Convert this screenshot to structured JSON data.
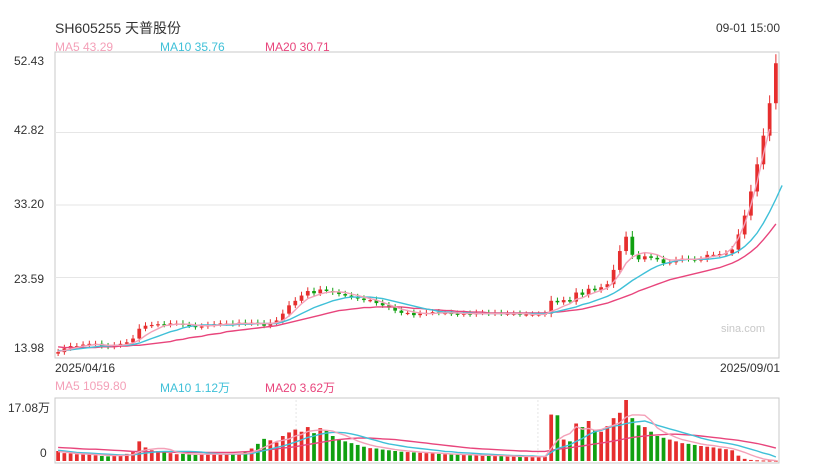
{
  "header": {
    "title": "SH605255 天普股份",
    "datetime": "09-01 15:00"
  },
  "colors": {
    "up": "#e62e2e",
    "down": "#10a010",
    "ma5": "#f4a0b8",
    "ma10": "#3fc0d8",
    "ma20": "#e8457c",
    "grid": "#e6e6e6",
    "frame": "#c8c8c8"
  },
  "price_legend": {
    "ma5": "MA5 43.29",
    "ma10": "MA10 35.76",
    "ma20": "MA20 30.71"
  },
  "volume_legend": {
    "ma5": "MA5 1059.80",
    "ma10": "MA10 1.12万",
    "ma20": "MA20 3.62万"
  },
  "price_axis": {
    "ticks": [
      "52.43",
      "42.82",
      "33.20",
      "23.59",
      "13.98"
    ]
  },
  "volume_axis": {
    "ticks": [
      "17.08万",
      "0"
    ]
  },
  "x_axis": {
    "start": "2025/04/16",
    "end": "2025/09/01"
  },
  "watermark": "sina.com",
  "chart_data": [
    {
      "type": "candlestick",
      "title": "SH605255 天普股份",
      "x_start": "2025/04/16",
      "x_end": "2025/09/01",
      "ylim": [
        13.98,
        52.43
      ],
      "closes": [
        13.7,
        14.2,
        14.5,
        14.5,
        14.7,
        14.8,
        14.8,
        14.5,
        14.4,
        14.6,
        14.8,
        15.0,
        15.5,
        16.8,
        17.2,
        17.3,
        17.4,
        17.3,
        17.5,
        17.5,
        17.3,
        17.2,
        17.0,
        17.1,
        17.3,
        17.4,
        17.5,
        17.5,
        17.4,
        17.6,
        17.5,
        17.6,
        17.5,
        17.2,
        17.6,
        17.9,
        18.8,
        19.9,
        20.5,
        21.2,
        21.8,
        21.5,
        22.0,
        21.8,
        21.6,
        21.4,
        21.2,
        21.0,
        20.8,
        20.6,
        20.6,
        20.2,
        19.9,
        19.6,
        19.2,
        18.9,
        18.9,
        18.6,
        18.8,
        18.9,
        19.0,
        18.9,
        18.9,
        18.8,
        18.7,
        18.8,
        18.7,
        18.9,
        18.9,
        18.8,
        18.9,
        18.8,
        18.8,
        18.8,
        18.7,
        18.7,
        18.7,
        18.7,
        18.8,
        20.5,
        20.3,
        20.6,
        20.4,
        21.6,
        21.3,
        22.1,
        21.9,
        22.3,
        22.7,
        24.6,
        27.1,
        29.0,
        26.6,
        26.0,
        26.4,
        26.2,
        26.0,
        25.5,
        25.6,
        25.9,
        26.1,
        26.0,
        25.9,
        26.0,
        26.6,
        26.6,
        26.7,
        26.8,
        27.3,
        29.3,
        31.8,
        35.0,
        38.6,
        42.4,
        46.7,
        52.0
      ],
      "ma5": [
        13.8,
        13.9,
        14.1,
        14.3,
        14.5,
        14.6,
        14.7,
        14.7,
        14.6,
        14.6,
        14.6,
        14.7,
        14.9,
        15.3,
        15.9,
        16.4,
        16.8,
        17.2,
        17.3,
        17.4,
        17.4,
        17.4,
        17.3,
        17.2,
        17.2,
        17.2,
        17.3,
        17.4,
        17.4,
        17.5,
        17.5,
        17.5,
        17.5,
        17.5,
        17.5,
        17.6,
        17.9,
        18.5,
        19.3,
        20.1,
        20.8,
        21.1,
        21.4,
        21.6,
        21.7,
        21.7,
        21.6,
        21.4,
        21.2,
        21.0,
        20.8,
        20.6,
        20.3,
        20.0,
        19.7,
        19.4,
        19.2,
        19.0,
        18.9,
        18.8,
        18.8,
        18.9,
        18.9,
        18.9,
        18.9,
        18.8,
        18.8,
        18.8,
        18.8,
        18.8,
        18.8,
        18.8,
        18.8,
        18.8,
        18.8,
        18.8,
        18.7,
        18.7,
        18.7,
        19.1,
        19.4,
        19.8,
        20.1,
        20.7,
        20.9,
        21.3,
        21.6,
        21.9,
        22.2,
        23.0,
        24.1,
        25.5,
        26.3,
        26.7,
        26.9,
        26.8,
        26.6,
        26.2,
        25.9,
        25.9,
        26.0,
        26.0,
        26.0,
        26.1,
        26.2,
        26.4,
        26.5,
        26.8,
        27.5,
        28.8,
        30.7,
        33.2,
        36.3,
        39.9,
        43.3
      ],
      "ma10": [
        13.9,
        13.9,
        14.0,
        14.1,
        14.2,
        14.3,
        14.4,
        14.5,
        14.5,
        14.6,
        14.6,
        14.6,
        14.7,
        14.9,
        15.2,
        15.5,
        15.8,
        16.1,
        16.4,
        16.6,
        16.9,
        17.1,
        17.2,
        17.3,
        17.3,
        17.3,
        17.3,
        17.3,
        17.3,
        17.4,
        17.4,
        17.4,
        17.5,
        17.5,
        17.5,
        17.5,
        17.7,
        18.0,
        18.4,
        18.8,
        19.2,
        19.6,
        19.9,
        20.2,
        20.5,
        20.7,
        20.9,
        21.0,
        21.0,
        21.0,
        21.0,
        20.9,
        20.8,
        20.6,
        20.4,
        20.2,
        20.0,
        19.8,
        19.6,
        19.4,
        19.3,
        19.1,
        19.0,
        19.0,
        18.9,
        18.9,
        18.9,
        18.8,
        18.8,
        18.8,
        18.8,
        18.8,
        18.8,
        18.8,
        18.8,
        18.8,
        18.8,
        18.8,
        18.8,
        18.9,
        19.1,
        19.3,
        19.5,
        19.7,
        20.0,
        20.2,
        20.5,
        20.8,
        21.1,
        21.5,
        22.0,
        22.6,
        23.2,
        23.7,
        24.2,
        24.7,
        25.1,
        25.4,
        25.6,
        25.8,
        25.9,
        26.0,
        26.0,
        26.0,
        26.0,
        26.1,
        26.2,
        26.4,
        26.7,
        27.1,
        27.7,
        28.5,
        29.5,
        30.8,
        32.3,
        34.0,
        35.8
      ],
      "ma20": [
        14.4,
        14.3,
        14.3,
        14.3,
        14.3,
        14.3,
        14.3,
        14.4,
        14.4,
        14.4,
        14.5,
        14.5,
        14.6,
        14.6,
        14.7,
        14.8,
        14.9,
        15.0,
        15.1,
        15.3,
        15.4,
        15.6,
        15.7,
        15.8,
        16.0,
        16.1,
        16.2,
        16.4,
        16.5,
        16.6,
        16.7,
        16.8,
        16.9,
        17.0,
        17.1,
        17.2,
        17.4,
        17.6,
        17.8,
        18.0,
        18.2,
        18.4,
        18.6,
        18.8,
        19.0,
        19.2,
        19.3,
        19.4,
        19.5,
        19.6,
        19.6,
        19.7,
        19.7,
        19.7,
        19.7,
        19.7,
        19.6,
        19.5,
        19.5,
        19.4,
        19.3,
        19.3,
        19.2,
        19.2,
        19.1,
        19.1,
        19.0,
        19.0,
        19.0,
        18.9,
        18.9,
        18.9,
        18.9,
        18.9,
        18.9,
        18.9,
        18.9,
        18.9,
        18.9,
        19.0,
        19.0,
        19.1,
        19.2,
        19.3,
        19.4,
        19.6,
        19.8,
        20.0,
        20.2,
        20.5,
        20.8,
        21.1,
        21.4,
        21.8,
        22.1,
        22.4,
        22.7,
        23.0,
        23.3,
        23.5,
        23.7,
        23.9,
        24.1,
        24.3,
        24.5,
        24.7,
        24.9,
        25.2,
        25.5,
        25.9,
        26.4,
        27.0,
        27.7,
        28.6,
        29.6,
        30.7
      ]
    },
    {
      "type": "bar",
      "title": "Volume",
      "ylim": [
        0,
        170800
      ],
      "volume_unit": "shares",
      "volumes": [
        28000,
        22000,
        21000,
        19000,
        18000,
        19000,
        16000,
        14000,
        13000,
        15000,
        17000,
        20000,
        25000,
        55000,
        38000,
        30000,
        28000,
        24000,
        22000,
        19000,
        20000,
        18000,
        17000,
        21000,
        19000,
        22000,
        18000,
        19000,
        21000,
        19000,
        26000,
        35000,
        48000,
        62000,
        58000,
        52000,
        70000,
        80000,
        88000,
        82000,
        95000,
        78000,
        92000,
        85000,
        70000,
        60000,
        55000,
        50000,
        45000,
        40000,
        36000,
        35000,
        32000,
        30000,
        28000,
        26000,
        25000,
        24000,
        23000,
        22000,
        21000,
        20000,
        19000,
        18000,
        18000,
        17000,
        16000,
        16000,
        15000,
        15000,
        14000,
        14000,
        13000,
        13000,
        12000,
        12000,
        11000,
        11000,
        12000,
        130000,
        128000,
        60000,
        55000,
        105000,
        95000,
        112000,
        88000,
        82000,
        98000,
        120000,
        135000,
        170800,
        120000,
        100000,
        95000,
        82000,
        70000,
        65000,
        60000,
        55000,
        50000,
        48000,
        45000,
        42000,
        40000,
        38000,
        35000,
        33000,
        30000,
        15000,
        6000,
        3000,
        2000,
        1500,
        1200,
        1000
      ],
      "ma5": [
        26000,
        25000,
        23000,
        21000,
        20000,
        19000,
        18000,
        17000,
        16000,
        15000,
        15000,
        16000,
        18000,
        26000,
        31000,
        33000,
        35000,
        35000,
        32000,
        25000,
        22000,
        20000,
        19000,
        19000,
        19000,
        19000,
        19000,
        20000,
        20000,
        20000,
        21000,
        24000,
        30000,
        38000,
        46000,
        55000,
        58000,
        62000,
        70000,
        74000,
        83000,
        85000,
        87000,
        86000,
        84000,
        77000,
        72000,
        64000,
        56000,
        50000,
        45000,
        41000,
        38000,
        35000,
        32000,
        30000,
        28000,
        27000,
        25000,
        24000,
        23000,
        22000,
        21000,
        20000,
        19000,
        18000,
        18000,
        17000,
        16000,
        16000,
        15000,
        15000,
        14000,
        14000,
        13000,
        13000,
        12000,
        12000,
        12000,
        35000,
        58000,
        70000,
        77000,
        96000,
        89000,
        91000,
        86000,
        88000,
        95000,
        100000,
        107000,
        123000,
        129000,
        129000,
        128000,
        113000,
        93000,
        82000,
        74000,
        66000,
        60000,
        56000,
        52000,
        48000,
        45000,
        43000,
        40000,
        38000,
        35000,
        30000,
        24000,
        17000,
        11000,
        6000,
        2700,
        1060
      ],
      "ma10": [
        30000,
        28000,
        26000,
        24000,
        23000,
        22000,
        21000,
        20000,
        19000,
        18000,
        17000,
        17000,
        17000,
        20000,
        22000,
        24000,
        26000,
        27000,
        27000,
        27000,
        27000,
        27000,
        26000,
        25000,
        22000,
        21000,
        20000,
        19000,
        19000,
        19000,
        20000,
        21000,
        25000,
        29000,
        33000,
        38000,
        42000,
        47000,
        53000,
        59000,
        66000,
        70000,
        75000,
        78000,
        80000,
        80000,
        79000,
        76000,
        72000,
        67000,
        62000,
        57000,
        52000,
        48000,
        45000,
        42000,
        39000,
        37000,
        35000,
        33000,
        31000,
        29000,
        27000,
        26000,
        24000,
        23000,
        22000,
        21000,
        20000,
        19000,
        18000,
        17000,
        16000,
        15000,
        15000,
        14000,
        14000,
        13000,
        13000,
        24000,
        35000,
        40000,
        45000,
        55000,
        63000,
        74000,
        82000,
        86000,
        92000,
        98000,
        100000,
        105000,
        108000,
        110000,
        112000,
        106000,
        100000,
        95000,
        90000,
        85000,
        80000,
        75000,
        70000,
        64000,
        60000,
        56000,
        53000,
        50000,
        47000,
        43000,
        38000,
        33000,
        28000,
        22000,
        18000,
        11200
      ],
      "ma20": [
        38000,
        37000,
        36000,
        35000,
        34000,
        33000,
        33000,
        32000,
        31000,
        30000,
        29000,
        28000,
        27000,
        27000,
        26000,
        26000,
        25000,
        25000,
        25000,
        24000,
        24000,
        24000,
        24000,
        24000,
        24000,
        24000,
        24000,
        24000,
        24000,
        25000,
        26000,
        27000,
        28000,
        30000,
        32000,
        34000,
        36000,
        38000,
        40000,
        43000,
        46000,
        49000,
        52000,
        55000,
        58000,
        60000,
        62000,
        63000,
        64000,
        64000,
        64000,
        63000,
        62000,
        61000,
        60000,
        58000,
        56000,
        54000,
        52000,
        50000,
        48000,
        46000,
        44000,
        42000,
        40000,
        38000,
        36000,
        35000,
        34000,
        33000,
        32000,
        31000,
        30000,
        29000,
        28000,
        28000,
        27000,
        27000,
        27000,
        30000,
        33000,
        35000,
        37000,
        40000,
        42000,
        45000,
        48000,
        50000,
        53000,
        56000,
        59000,
        63000,
        66000,
        68000,
        70000,
        72000,
        73000,
        74000,
        75000,
        75000,
        74000,
        73000,
        72000,
        70000,
        68000,
        66000,
        64000,
        62000,
        60000,
        58000,
        55000,
        52000,
        49000,
        45000,
        41000,
        36200
      ]
    }
  ]
}
